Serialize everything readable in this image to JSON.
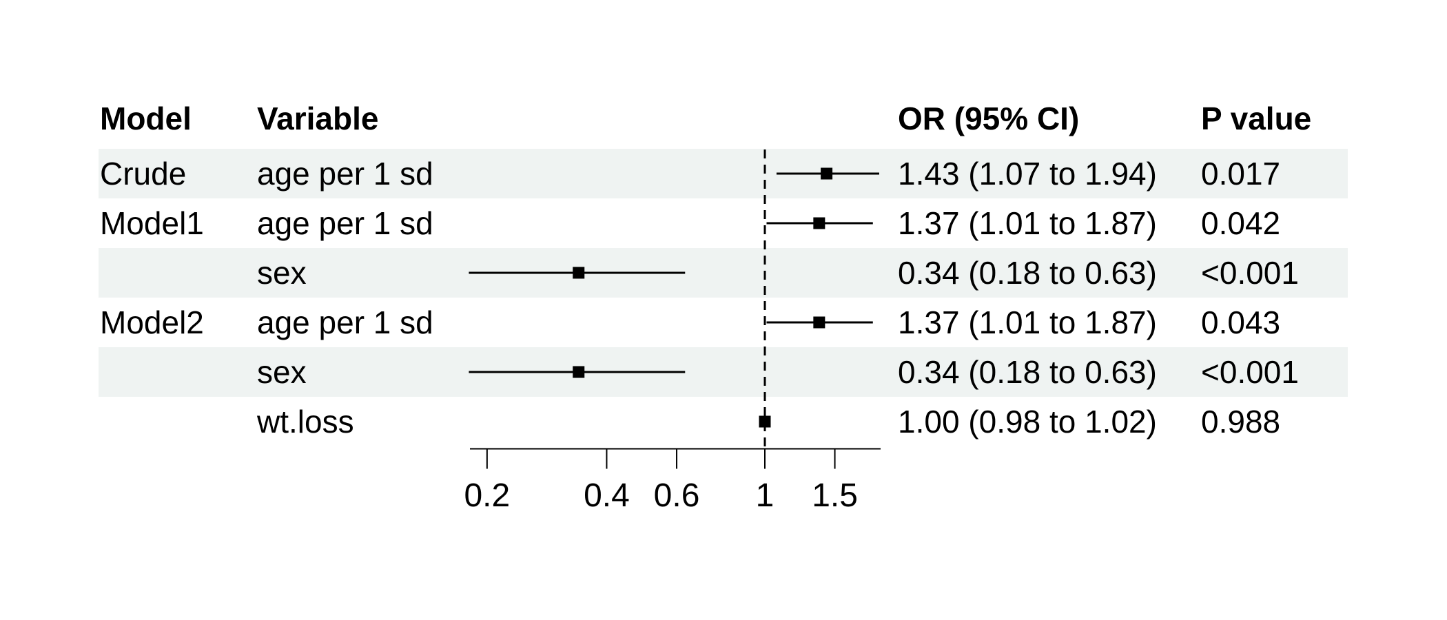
{
  "colors": {
    "stripe_bg": "#eff3f2",
    "text": "#000000",
    "line": "#000000"
  },
  "table": {
    "headers": [
      {
        "label": "Model"
      },
      {
        "label": "Variable"
      },
      {
        "label": "OR (95% CI)"
      },
      {
        "label": "P value"
      }
    ]
  },
  "chart_data": {
    "type": "scatter",
    "subtype": "forest-plot",
    "x_scale": "log",
    "x_ticks": [
      "0.2",
      "0.4",
      "0.6",
      "1",
      "1.5"
    ],
    "x_tick_values": [
      0.2,
      0.4,
      0.6,
      1,
      1.5
    ],
    "xlim": [
      0.18,
      1.95
    ],
    "reference_line": 1.0,
    "grid": false,
    "legend": "none",
    "rows": [
      {
        "model": "Crude",
        "variable": "age per 1 sd",
        "or_text": "1.43 (1.07 to 1.94)",
        "p": "0.017",
        "est": 1.43,
        "lo": 1.07,
        "hi": 1.94,
        "striped": true
      },
      {
        "model": "Model1",
        "variable": "age per 1 sd",
        "or_text": "1.37 (1.01 to 1.87)",
        "p": "0.042",
        "est": 1.37,
        "lo": 1.01,
        "hi": 1.87,
        "striped": false
      },
      {
        "model": "",
        "variable": "sex",
        "or_text": "0.34 (0.18 to 0.63)",
        "p": "<0.001",
        "est": 0.34,
        "lo": 0.18,
        "hi": 0.63,
        "striped": true
      },
      {
        "model": "Model2",
        "variable": "age per 1 sd",
        "or_text": "1.37 (1.01 to 1.87)",
        "p": "0.043",
        "est": 1.37,
        "lo": 1.01,
        "hi": 1.87,
        "striped": false
      },
      {
        "model": "",
        "variable": "sex",
        "or_text": "0.34 (0.18 to 0.63)",
        "p": "<0.001",
        "est": 0.34,
        "lo": 0.18,
        "hi": 0.63,
        "striped": true
      },
      {
        "model": "",
        "variable": "wt.loss",
        "or_text": "1.00 (0.98 to 1.02)",
        "p": "0.988",
        "est": 1.0,
        "lo": 0.98,
        "hi": 1.02,
        "striped": false
      }
    ]
  }
}
